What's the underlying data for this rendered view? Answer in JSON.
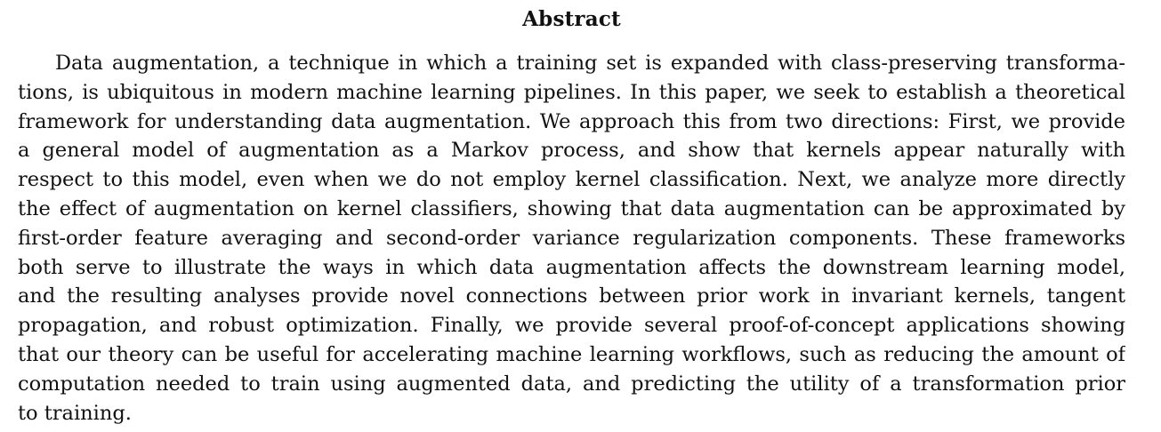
{
  "abstract": {
    "heading": "Abstract",
    "lines": [
      "Data augmentation, a technique in which a training set is expanded with class-preserving transforma-",
      "tions, is ubiquitous in modern machine learning pipelines. In this paper, we seek to establish a theoretical",
      "framework for understanding data augmentation. We approach this from two directions: First, we provide",
      "a general model of augmentation as a Markov process, and show that kernels appear naturally with",
      "respect to this model, even when we do not employ kernel classification. Next, we analyze more directly",
      "the effect of augmentation on kernel classifiers, showing that data augmentation can be approximated by",
      "first-order feature averaging and second-order variance regularization components. These frameworks",
      "both serve to illustrate the ways in which data augmentation affects the downstream learning model,",
      "and the resulting analyses provide novel connections between prior work in invariant kernels, tangent",
      "propagation, and robust optimization. Finally, we provide several proof-of-concept applications showing",
      "that our theory can be useful for accelerating machine learning workflows, such as reducing the amount of",
      "computation needed to train using augmented data, and predicting the utility of a transformation prior",
      "to training."
    ]
  }
}
